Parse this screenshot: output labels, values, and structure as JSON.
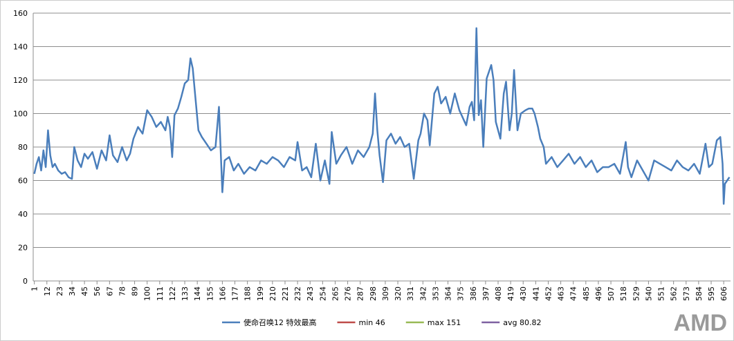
{
  "chart_data": {
    "type": "line",
    "series": [
      {
        "name": "使命召唤12 特效最高",
        "color": "#4a7ebb",
        "x": [
          1,
          3,
          5,
          7,
          9,
          11,
          13,
          15,
          17,
          19,
          22,
          25,
          28,
          31,
          34,
          36,
          39,
          42,
          45,
          48,
          52,
          56,
          60,
          64,
          67,
          70,
          74,
          78,
          82,
          85,
          88,
          92,
          96,
          100,
          104,
          108,
          112,
          116,
          118,
          120,
          122,
          124,
          127,
          130,
          133,
          136,
          138,
          140,
          142,
          145,
          148,
          152,
          156,
          160,
          163,
          166,
          168,
          172,
          176,
          180,
          185,
          190,
          195,
          200,
          205,
          210,
          215,
          220,
          225,
          230,
          232,
          236,
          240,
          244,
          248,
          252,
          256,
          260,
          262,
          266,
          270,
          275,
          280,
          285,
          290,
          295,
          298,
          300,
          302,
          304,
          307,
          310,
          314,
          318,
          322,
          326,
          330,
          334,
          338,
          340,
          343,
          346,
          348,
          352,
          355,
          358,
          362,
          366,
          370,
          374,
          378,
          380,
          383,
          385,
          387,
          389,
          391,
          393,
          395,
          398,
          402,
          404,
          406,
          410,
          413,
          415,
          418,
          420,
          422,
          425,
          428,
          432,
          435,
          438,
          440,
          443,
          445,
          448,
          450,
          455,
          460,
          465,
          470,
          475,
          480,
          485,
          490,
          495,
          500,
          505,
          510,
          515,
          520,
          522,
          525,
          530,
          535,
          540,
          545,
          550,
          555,
          560,
          565,
          570,
          575,
          580,
          585,
          590,
          593,
          596,
          600,
          603,
          605,
          606,
          607,
          609,
          611
        ],
        "values": [
          64,
          70,
          74,
          66,
          78,
          68,
          90,
          75,
          68,
          70,
          66,
          64,
          65,
          62,
          61,
          80,
          72,
          68,
          76,
          73,
          77,
          67,
          78,
          72,
          87,
          75,
          71,
          80,
          72,
          76,
          85,
          92,
          88,
          102,
          98,
          92,
          95,
          90,
          98,
          92,
          74,
          99,
          103,
          110,
          118,
          120,
          133,
          127,
          112,
          90,
          86,
          82,
          78,
          80,
          104,
          53,
          72,
          74,
          66,
          70,
          64,
          68,
          66,
          72,
          70,
          74,
          72,
          68,
          74,
          72,
          83,
          66,
          68,
          62,
          82,
          60,
          72,
          58,
          89,
          70,
          75,
          80,
          70,
          78,
          74,
          80,
          88,
          112,
          90,
          75,
          59,
          84,
          88,
          82,
          86,
          80,
          82,
          61,
          84,
          88,
          100,
          96,
          81,
          112,
          116,
          106,
          110,
          100,
          112,
          102,
          96,
          93,
          104,
          107,
          96,
          151,
          99,
          108,
          80,
          121,
          129,
          120,
          95,
          85,
          112,
          119,
          90,
          100,
          126,
          90,
          100,
          102,
          103,
          103,
          100,
          92,
          85,
          80,
          70,
          74,
          68,
          72,
          76,
          70,
          74,
          68,
          72,
          65,
          68,
          68,
          70,
          64,
          83,
          68,
          62,
          72,
          66,
          60,
          72,
          70,
          68,
          66,
          72,
          68,
          66,
          70,
          64,
          82,
          68,
          70,
          84,
          86,
          70,
          46,
          58,
          60,
          62
        ]
      }
    ],
    "legend_only": [
      {
        "name": "min 46",
        "color": "#be4b48"
      },
      {
        "name": "max 151",
        "color": "#98b954"
      },
      {
        "name": "avg 80.82",
        "color": "#7d60a0"
      }
    ],
    "xlim": [
      0,
      612
    ],
    "xticks": [
      1,
      12,
      23,
      34,
      45,
      56,
      67,
      78,
      89,
      100,
      111,
      122,
      133,
      144,
      155,
      166,
      177,
      188,
      199,
      210,
      221,
      232,
      243,
      254,
      265,
      276,
      287,
      298,
      309,
      320,
      331,
      342,
      353,
      364,
      375,
      386,
      397,
      408,
      419,
      430,
      441,
      452,
      463,
      474,
      485,
      496,
      507,
      518,
      529,
      540,
      551,
      562,
      573,
      584,
      595,
      606
    ],
    "ylim": [
      0,
      160
    ],
    "yticks": [
      0,
      20,
      40,
      60,
      80,
      100,
      120,
      140,
      160
    ],
    "grid": true
  },
  "watermark": "AMD"
}
